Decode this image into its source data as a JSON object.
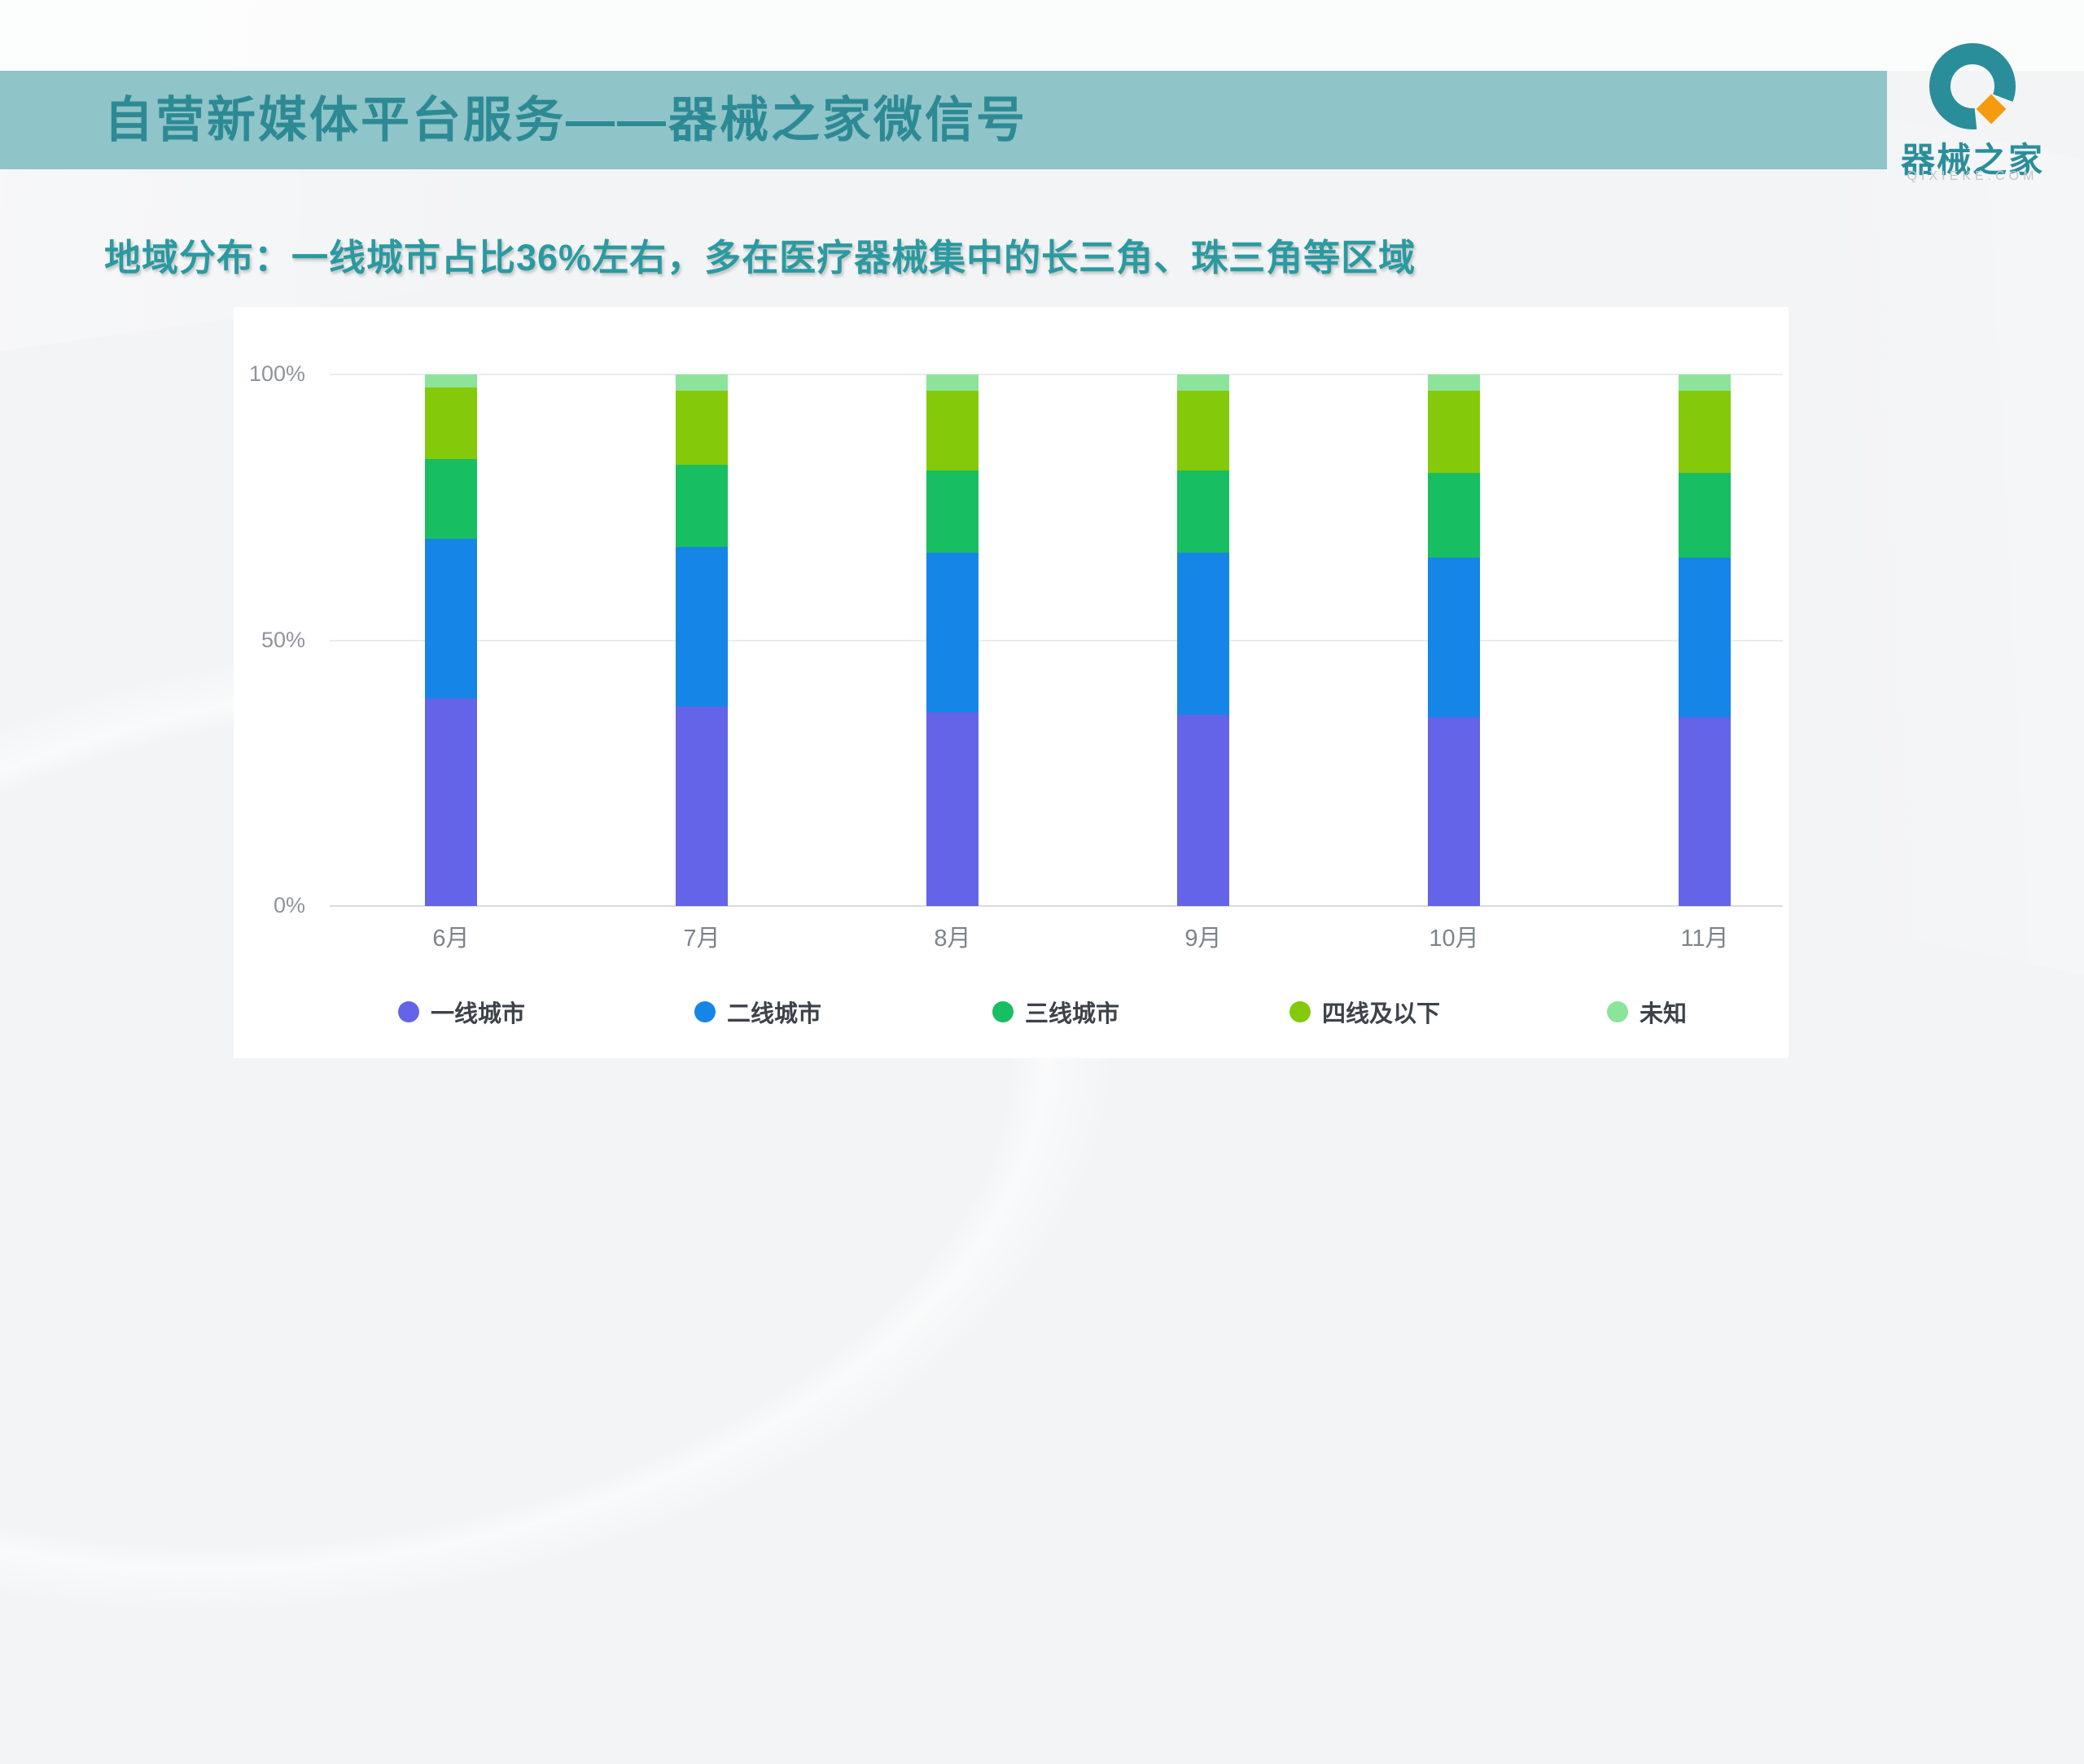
{
  "header": {
    "title": "自营新媒体平台服务——器械之家微信号"
  },
  "logo": {
    "brand": "器械之家",
    "domain": "QIXIEKE.COM",
    "teal": "#2a8e9a",
    "orange": "#f59b10"
  },
  "subtitle": "地域分布：一线城市占比36%左右，多在医疗器械集中的长三角、珠三角等区域",
  "chart_data": {
    "type": "bar",
    "variant": "stacked-percent-column",
    "title": "",
    "xlabel": "",
    "ylabel": "",
    "categories": [
      "6月",
      "7月",
      "8月",
      "9月",
      "10月",
      "11月"
    ],
    "series": [
      {
        "name": "一线城市",
        "color": "#6364e8",
        "values": [
          39.0,
          37.5,
          36.5,
          36.0,
          35.5,
          35.5
        ]
      },
      {
        "name": "二线城市",
        "color": "#1685e8",
        "values": [
          30.0,
          30.0,
          30.0,
          30.5,
          30.0,
          30.0
        ]
      },
      {
        "name": "三线城市",
        "color": "#17be62",
        "values": [
          15.0,
          15.5,
          15.5,
          15.5,
          16.0,
          16.0
        ]
      },
      {
        "name": "四线及以下",
        "color": "#84c90a",
        "values": [
          13.5,
          14.0,
          15.0,
          15.0,
          15.5,
          15.5
        ]
      },
      {
        "name": "未知",
        "color": "#8ce39a",
        "values": [
          2.5,
          3.0,
          3.0,
          3.0,
          3.0,
          3.0
        ]
      }
    ],
    "y_axis": {
      "min": 0,
      "max": 100,
      "ticks": [
        {
          "label": "100%",
          "value": 100
        },
        {
          "label": "50%",
          "value": 50
        },
        {
          "label": "0%",
          "value": 0
        }
      ]
    },
    "legend_position": "bottom",
    "grid": true
  },
  "colors": {
    "band": "#8fc4c9",
    "title_text": "#2d8a94",
    "subtitle_text": "#2a9aa0"
  }
}
